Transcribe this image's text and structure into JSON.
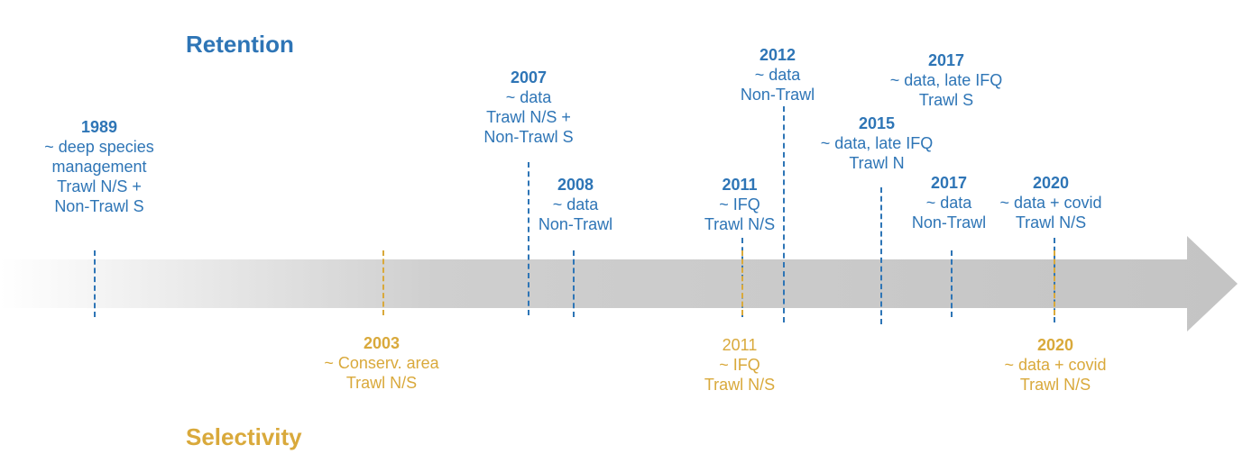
{
  "titles": {
    "retention": "Retention",
    "selectivity": "Selectivity"
  },
  "colors": {
    "retention": "#2e75b6",
    "selectivity": "#d9a93b",
    "arrow_start": "#ffffff",
    "arrow_end": "#c8c8c8"
  },
  "retention_events": [
    {
      "year": "1989",
      "lines": [
        "~ deep species",
        "management",
        "Trawl N/S +",
        "Non-Trawl S"
      ]
    },
    {
      "year": "2007",
      "lines": [
        "~ data",
        "Trawl N/S +",
        "Non-Trawl S"
      ]
    },
    {
      "year": "2008",
      "lines": [
        "~ data",
        "Non-Trawl"
      ]
    },
    {
      "year": "2011",
      "lines": [
        "~ IFQ",
        "Trawl N/S"
      ]
    },
    {
      "year": "2012",
      "lines": [
        "~ data",
        "Non-Trawl"
      ]
    },
    {
      "year": "2015",
      "lines": [
        "~ data, late IFQ",
        "Trawl N"
      ]
    },
    {
      "year": "2017",
      "lines": [
        "~ data, late IFQ",
        "Trawl S"
      ]
    },
    {
      "year": "2017",
      "lines": [
        "~ data",
        "Non-Trawl"
      ]
    },
    {
      "year": "2020",
      "lines": [
        "~ data + covid",
        "Trawl N/S"
      ]
    }
  ],
  "selectivity_events": [
    {
      "year": "2003",
      "lines": [
        "~ Conserv. area",
        "Trawl N/S"
      ]
    },
    {
      "year": "2011",
      "lines": [
        "~ IFQ",
        "Trawl N/S"
      ]
    },
    {
      "year": "2020",
      "lines": [
        "~ data + covid",
        "Trawl N/S"
      ]
    }
  ]
}
